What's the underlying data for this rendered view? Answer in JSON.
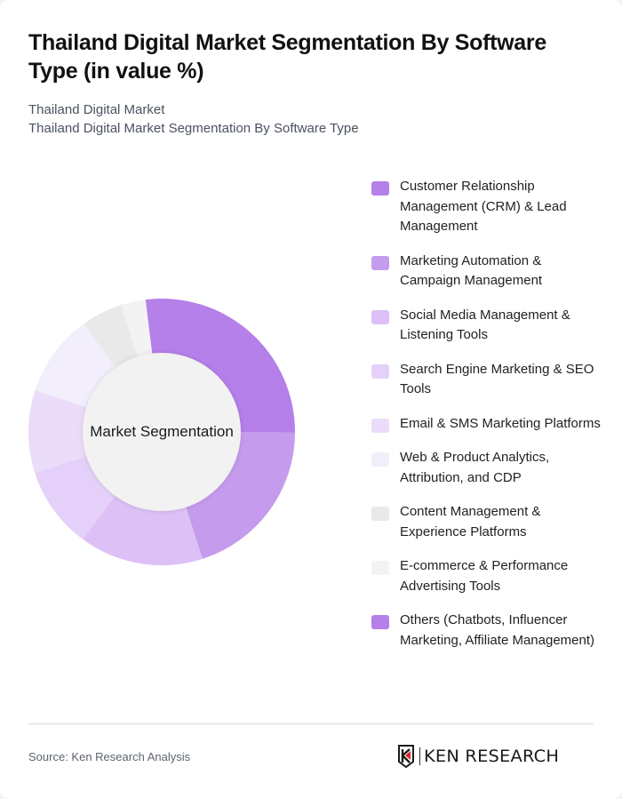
{
  "header": {
    "title": "Thailand Digital Market Segmentation By Software Type (in value %)",
    "subtitle_line1": "Thailand Digital Market",
    "subtitle_line2": "Thailand Digital Market Segmentation By Software Type"
  },
  "chart": {
    "center_label": "Market Segmentation"
  },
  "footer": {
    "source": "Source: Ken Research Analysis",
    "logo_text": "KEN RESEARCH"
  },
  "chart_data": {
    "type": "pie",
    "variant": "donut",
    "title": "Thailand Digital Market Segmentation By Software Type (in value %)",
    "center_label": "Market Segmentation",
    "start_angle_deg": -7,
    "legend_position": "right",
    "categories": [
      "Customer Relationship Management (CRM) & Lead Management",
      "Marketing Automation & Campaign Management",
      "Social Media Management & Listening Tools",
      "Search Engine Marketing & SEO Tools",
      "Email & SMS Marketing Platforms",
      "Web & Product Analytics, Attribution, and CDP",
      "Content Management & Experience Platforms",
      "E-commerce & Performance Advertising Tools",
      "Others (Chatbots, Influencer Marketing, Affiliate Management)"
    ],
    "values": [
      27,
      20,
      15,
      10,
      10,
      10,
      5,
      3,
      0
    ],
    "colors": [
      "#b580ea",
      "#c59bed",
      "#dcc0f6",
      "#e4d0f8",
      "#ebdcfa",
      "#f3eefc",
      "#e9e9e9",
      "#f3f3f3",
      "#b580ea"
    ],
    "unit": "%"
  }
}
